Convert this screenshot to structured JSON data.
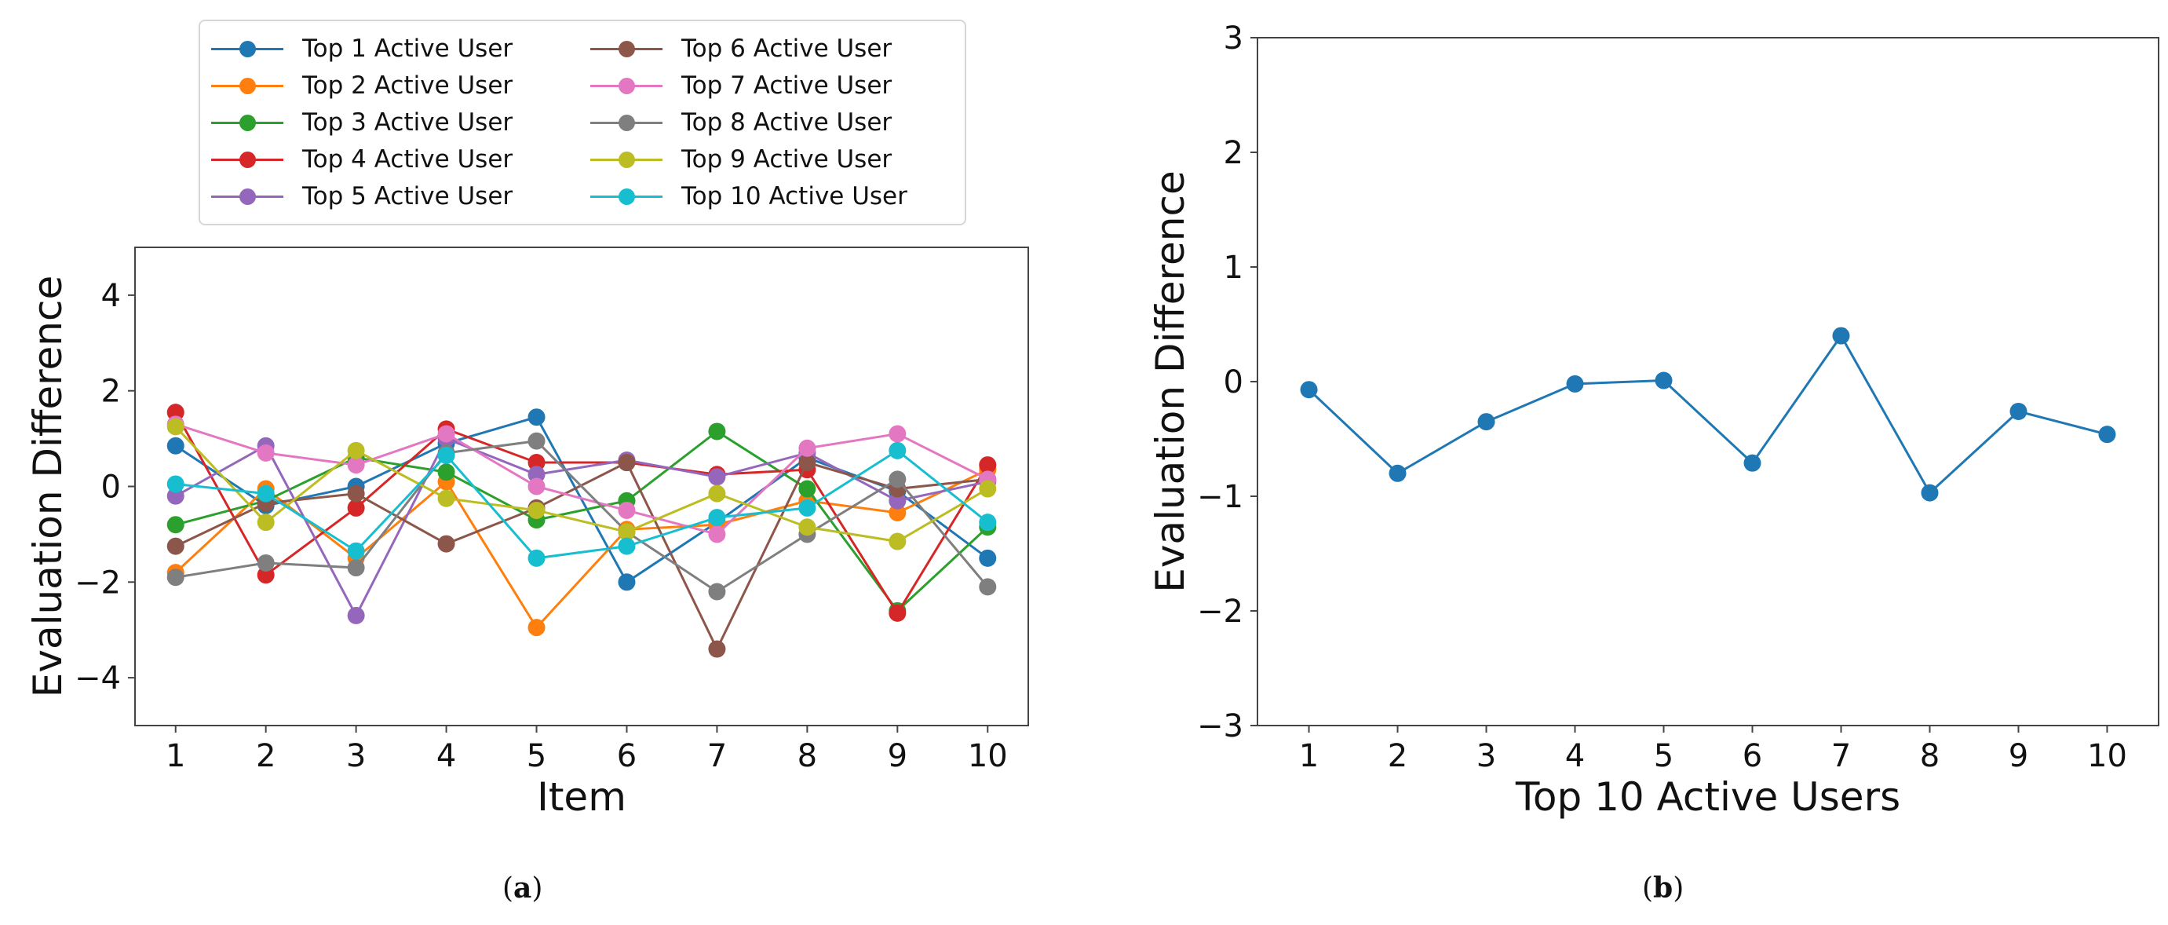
{
  "chart_data": [
    {
      "type": "line",
      "panel": "a",
      "xlabel": "Item",
      "ylabel": "Evaluation Difference",
      "x": [
        1,
        2,
        3,
        4,
        5,
        6,
        7,
        8,
        9,
        10
      ],
      "xticks": [
        "1",
        "2",
        "3",
        "4",
        "5",
        "6",
        "7",
        "8",
        "9",
        "10"
      ],
      "yticks": [
        "−4",
        "−2",
        "0",
        "2",
        "4"
      ],
      "ytick_values": [
        -4,
        -2,
        0,
        2,
        4
      ],
      "xlim": [
        0.55,
        10.45
      ],
      "ylim": [
        -5,
        5
      ],
      "grid": false,
      "legend": "top-center-outside",
      "series": [
        {
          "name": "Top 1 Active User",
          "color": "#1f77b4",
          "values": [
            0.85,
            -0.4,
            0.0,
            0.9,
            1.45,
            -2.0,
            -0.75,
            0.6,
            -0.1,
            -1.5
          ]
        },
        {
          "name": "Top 2 Active User",
          "color": "#ff7f0e",
          "values": [
            -1.8,
            -0.05,
            -1.5,
            0.1,
            -2.95,
            -0.9,
            -0.8,
            -0.3,
            -0.55,
            0.35
          ]
        },
        {
          "name": "Top 3 Active User",
          "color": "#2ca02c",
          "values": [
            -0.8,
            -0.3,
            0.6,
            0.3,
            -0.7,
            -0.3,
            1.15,
            -0.05,
            -2.6,
            -0.85
          ]
        },
        {
          "name": "Top 4 Active User",
          "color": "#d62728",
          "values": [
            1.55,
            -1.85,
            -0.45,
            1.2,
            0.5,
            0.5,
            0.25,
            0.35,
            -2.65,
            0.45
          ]
        },
        {
          "name": "Top 5 Active User",
          "color": "#9467bd",
          "values": [
            -0.2,
            0.85,
            -2.7,
            1.0,
            0.25,
            0.55,
            0.2,
            0.7,
            -0.3,
            0.1
          ]
        },
        {
          "name": "Top 6 Active User",
          "color": "#8c564b",
          "values": [
            -1.25,
            -0.35,
            -0.15,
            -1.2,
            -0.45,
            0.5,
            -3.4,
            0.5,
            -0.05,
            0.15
          ]
        },
        {
          "name": "Top 7 Active User",
          "color": "#e377c2",
          "values": [
            1.3,
            0.7,
            0.45,
            1.1,
            0.0,
            -0.5,
            -1.0,
            0.8,
            1.1,
            0.15
          ]
        },
        {
          "name": "Top 8 Active User",
          "color": "#7f7f7f",
          "values": [
            -1.9,
            -1.6,
            -1.7,
            0.7,
            0.95,
            -0.95,
            -2.2,
            -1.0,
            0.15,
            -2.1
          ]
        },
        {
          "name": "Top 9 Active User",
          "color": "#bcbd22",
          "values": [
            1.25,
            -0.75,
            0.75,
            -0.25,
            -0.5,
            -0.95,
            -0.15,
            -0.85,
            -1.15,
            -0.05
          ]
        },
        {
          "name": "Top 10 Active User",
          "color": "#17becf",
          "values": [
            0.05,
            -0.15,
            -1.35,
            0.65,
            -1.5,
            -1.25,
            -0.65,
            -0.45,
            0.75,
            -0.75
          ]
        }
      ]
    },
    {
      "type": "line",
      "panel": "b",
      "xlabel": "Top 10 Active Users",
      "ylabel": "Evaluation Difference",
      "x": [
        1,
        2,
        3,
        4,
        5,
        6,
        7,
        8,
        9,
        10
      ],
      "xticks": [
        "1",
        "2",
        "3",
        "4",
        "5",
        "6",
        "7",
        "8",
        "9",
        "10"
      ],
      "yticks": [
        "−3",
        "−2",
        "−1",
        "0",
        "1",
        "2",
        "3"
      ],
      "ytick_values": [
        -3,
        -2,
        -1,
        0,
        1,
        2,
        3
      ],
      "xlim": [
        0.42,
        10.58
      ],
      "ylim": [
        -3,
        3
      ],
      "grid": false,
      "series": [
        {
          "name": "Evaluation Difference",
          "color": "#1f77b4",
          "values": [
            -0.07,
            -0.8,
            -0.35,
            -0.02,
            0.01,
            -0.71,
            0.4,
            -0.97,
            -0.26,
            -0.46
          ]
        }
      ]
    }
  ],
  "captions": {
    "a": "a",
    "b": "b"
  }
}
